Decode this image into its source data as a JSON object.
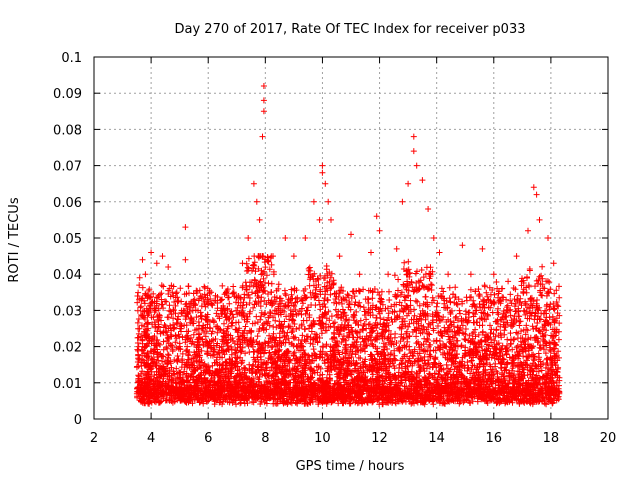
{
  "chart_data": {
    "type": "scatter",
    "title": "Day 270 of 2017, Rate Of TEC Index for receiver p033",
    "xlabel": "GPS time / hours",
    "ylabel": "ROTI / TECUs",
    "xlim": [
      2,
      20
    ],
    "ylim": [
      0,
      0.1
    ],
    "xticks": [
      "2",
      "4",
      "6",
      "8",
      "10",
      "12",
      "14",
      "16",
      "18",
      "20"
    ],
    "yticks": [
      "0",
      "0.01",
      "0.02",
      "0.03",
      "0.04",
      "0.05",
      "0.06",
      "0.07",
      "0.08",
      "0.09",
      "0.1"
    ],
    "grid": true,
    "marker": "plus",
    "color": "#ff0000",
    "x_range_of_data": [
      3.5,
      18.3
    ],
    "series": [
      {
        "values": [
          {
            "x": 3.6,
            "y": 0.039
          },
          {
            "x": 3.7,
            "y": 0.044
          },
          {
            "x": 3.8,
            "y": 0.04
          },
          {
            "x": 4.0,
            "y": 0.046
          },
          {
            "x": 4.2,
            "y": 0.043
          },
          {
            "x": 4.4,
            "y": 0.045
          },
          {
            "x": 4.6,
            "y": 0.042
          },
          {
            "x": 4.9,
            "y": 0.035
          },
          {
            "x": 5.2,
            "y": 0.053
          },
          {
            "x": 5.2,
            "y": 0.044
          },
          {
            "x": 5.5,
            "y": 0.032
          },
          {
            "x": 5.9,
            "y": 0.031
          },
          {
            "x": 6.1,
            "y": 0.035
          },
          {
            "x": 6.5,
            "y": 0.03
          },
          {
            "x": 6.9,
            "y": 0.035
          },
          {
            "x": 7.2,
            "y": 0.043
          },
          {
            "x": 7.4,
            "y": 0.05
          },
          {
            "x": 7.6,
            "y": 0.065
          },
          {
            "x": 7.7,
            "y": 0.06
          },
          {
            "x": 7.8,
            "y": 0.055
          },
          {
            "x": 7.95,
            "y": 0.092
          },
          {
            "x": 7.95,
            "y": 0.088
          },
          {
            "x": 7.95,
            "y": 0.085
          },
          {
            "x": 7.9,
            "y": 0.078
          },
          {
            "x": 8.3,
            "y": 0.04
          },
          {
            "x": 8.7,
            "y": 0.05
          },
          {
            "x": 9.0,
            "y": 0.045
          },
          {
            "x": 9.4,
            "y": 0.05
          },
          {
            "x": 9.7,
            "y": 0.06
          },
          {
            "x": 9.9,
            "y": 0.055
          },
          {
            "x": 10.0,
            "y": 0.07
          },
          {
            "x": 10.0,
            "y": 0.068
          },
          {
            "x": 10.1,
            "y": 0.065
          },
          {
            "x": 10.2,
            "y": 0.06
          },
          {
            "x": 10.3,
            "y": 0.055
          },
          {
            "x": 10.6,
            "y": 0.045
          },
          {
            "x": 11.0,
            "y": 0.051
          },
          {
            "x": 11.3,
            "y": 0.04
          },
          {
            "x": 11.7,
            "y": 0.046
          },
          {
            "x": 11.9,
            "y": 0.056
          },
          {
            "x": 12.0,
            "y": 0.052
          },
          {
            "x": 12.3,
            "y": 0.04
          },
          {
            "x": 12.6,
            "y": 0.047
          },
          {
            "x": 12.8,
            "y": 0.06
          },
          {
            "x": 13.0,
            "y": 0.065
          },
          {
            "x": 13.2,
            "y": 0.078
          },
          {
            "x": 13.2,
            "y": 0.074
          },
          {
            "x": 13.3,
            "y": 0.07
          },
          {
            "x": 13.5,
            "y": 0.066
          },
          {
            "x": 13.7,
            "y": 0.058
          },
          {
            "x": 13.9,
            "y": 0.05
          },
          {
            "x": 14.1,
            "y": 0.046
          },
          {
            "x": 14.4,
            "y": 0.04
          },
          {
            "x": 14.9,
            "y": 0.048
          },
          {
            "x": 15.2,
            "y": 0.04
          },
          {
            "x": 15.6,
            "y": 0.047
          },
          {
            "x": 16.0,
            "y": 0.04
          },
          {
            "x": 16.5,
            "y": 0.038
          },
          {
            "x": 16.8,
            "y": 0.045
          },
          {
            "x": 17.2,
            "y": 0.052
          },
          {
            "x": 17.4,
            "y": 0.064
          },
          {
            "x": 17.5,
            "y": 0.062
          },
          {
            "x": 17.6,
            "y": 0.055
          },
          {
            "x": 17.9,
            "y": 0.05
          },
          {
            "x": 18.1,
            "y": 0.043
          }
        ]
      }
    ]
  }
}
